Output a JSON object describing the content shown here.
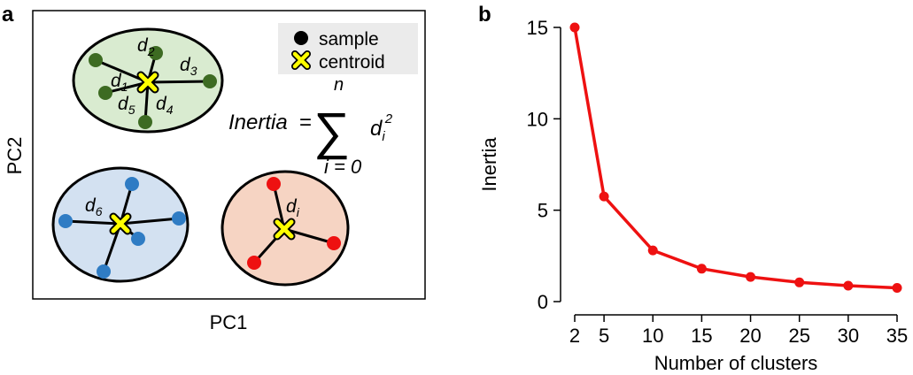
{
  "panel_labels": {
    "a": "a",
    "b": "b"
  },
  "diagram": {
    "x_axis": "PC1",
    "y_axis": "PC2",
    "legend": {
      "sample": "sample",
      "centroid": "centroid"
    },
    "distances": {
      "d1": "d",
      "d1_sub": "1",
      "d2": "d",
      "d2_sub": "2",
      "d3": "d",
      "d3_sub": "3",
      "d4": "d",
      "d4_sub": "4",
      "d5": "d",
      "d5_sub": "5",
      "d6": "d",
      "d6_sub": "6",
      "di": "d",
      "di_sub": "i"
    },
    "formula": {
      "lhs": "Inertia",
      "eq": "=",
      "sigma": "∑",
      "upper": "n",
      "lower": "i = 0",
      "term": "d",
      "term_sub": "i",
      "term_sup": "2"
    },
    "colors": {
      "green_fill": "#d9ebd0",
      "green_point": "#3d6b22",
      "blue_fill": "#d3e1f1",
      "blue_point": "#2f7cc4",
      "red_fill": "#f6d4c3",
      "red_point": "#ee1111",
      "centroid": "#ffff00"
    }
  },
  "chart_data": {
    "type": "line",
    "x": [
      2,
      5,
      10,
      15,
      20,
      25,
      30,
      35
    ],
    "y": [
      15,
      5.75,
      2.8,
      1.8,
      1.35,
      1.05,
      0.87,
      0.75
    ],
    "xticks": [
      2,
      5,
      10,
      15,
      20,
      25,
      30,
      35
    ],
    "yticks": [
      0,
      5,
      10,
      15
    ],
    "xlabel": "Number of clusters",
    "ylabel": "Inertia",
    "xlim": [
      2,
      35
    ],
    "ylim": [
      0,
      15
    ],
    "color": "#ee1111"
  }
}
